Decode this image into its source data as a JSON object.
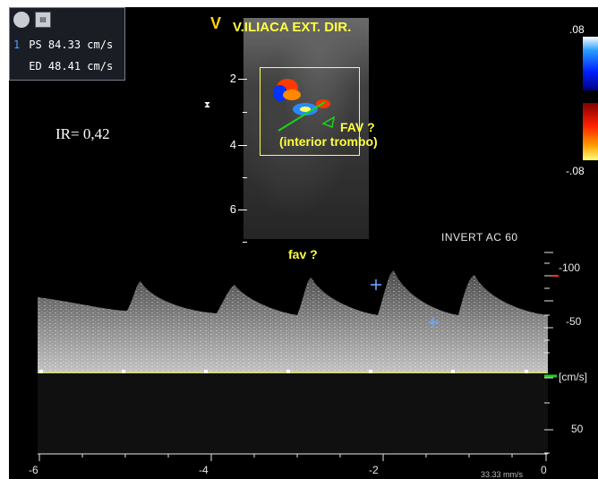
{
  "measurements": {
    "rows": [
      {
        "index": "1",
        "label": "PS",
        "value": "84.33 cm/s"
      },
      {
        "index": "",
        "label": "ED",
        "value": "48.41 cm/s"
      }
    ],
    "icons": [
      "camera-icon",
      "image-icon"
    ]
  },
  "ir_label": "IR= 0,42",
  "b_mode": {
    "orientation_marker": "V",
    "vessel_label": "V.ILIACA EXT. DIR.",
    "depth_ticks": [
      "2",
      "4",
      "6"
    ],
    "annotation_question": "FAV ?",
    "annotation_detail": "(interior trombo)"
  },
  "color_scale": {
    "top": ".08",
    "bottom": "-.08"
  },
  "doppler": {
    "settings_text": "INVERT   AC 60",
    "label": "fav ?",
    "velocity_ticks": [
      "-100",
      "-50",
      "[cm/s]",
      "50"
    ],
    "time_ticks": [
      "-6",
      "-4",
      "-2",
      "0"
    ],
    "sweep_speed": "33.33 mm/s"
  },
  "colors": {
    "accent_yellow": "#ffff40",
    "cursor_blue": "#6aa6ff",
    "baseline": "#d8d880"
  }
}
